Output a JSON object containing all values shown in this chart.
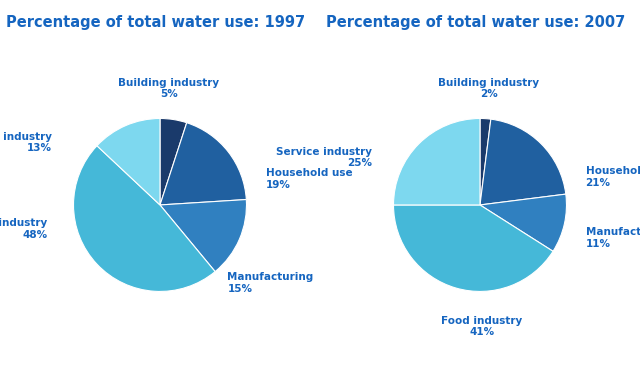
{
  "title1": "Percentage of total water use: 1997",
  "title2": "Percentage of total water use: 2007",
  "title_color": "#1565c0",
  "background_color": "#ffffff",
  "values1": [
    5,
    19,
    15,
    48,
    13
  ],
  "colors1": [
    "#1a3a6b",
    "#2060a0",
    "#3080c0",
    "#45b8d8",
    "#7dd8ef"
  ],
  "values2": [
    2,
    21,
    11,
    41,
    25
  ],
  "colors2": [
    "#1a3a6b",
    "#2060a0",
    "#3080c0",
    "#45b8d8",
    "#7dd8ef"
  ],
  "label_color": "#1565c0",
  "label_fontsize": 7.5,
  "title_fontsize": 10.5
}
